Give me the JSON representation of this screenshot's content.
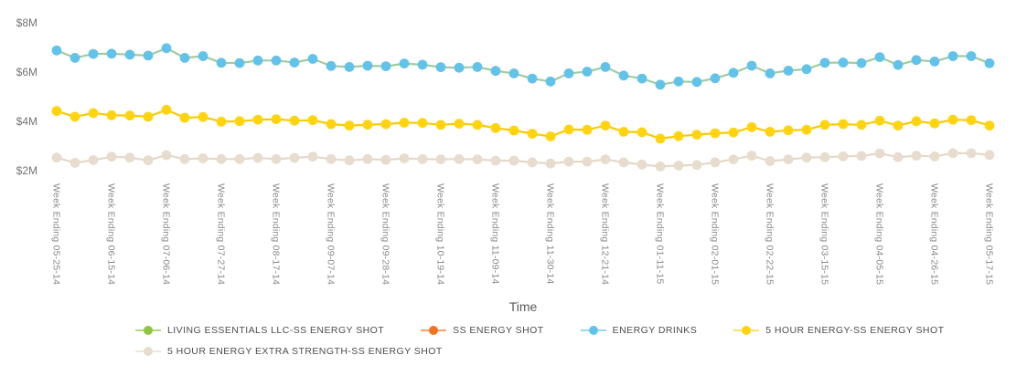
{
  "chart_data": {
    "type": "line",
    "title": "",
    "xlabel": "Time",
    "ylabel": "",
    "grid": false,
    "legend_position": "bottom",
    "ylim": [
      1.6,
      8.4
    ],
    "y_unit": "USD millions",
    "y_ticks": [
      "$8M",
      "$6M",
      "$4M",
      "$2M"
    ],
    "y_tick_values": [
      8,
      6,
      4,
      2
    ],
    "n_points": 52,
    "x_tick_every_n_points": 3,
    "x_tick_labels": [
      "Week Ending 05-25-14",
      "Week Ending 06-15-14",
      "Week Ending 07-06-14",
      "Week Ending 07-27-14",
      "Week Ending 08-17-14",
      "Week Ending 09-07-14",
      "Week Ending 09-28-14",
      "Week Ending 10-19-14",
      "Week Ending 11-09-14",
      "Week Ending 11-30-14",
      "Week Ending 12-21-14",
      "Week Ending 01-11-15",
      "Week Ending 02-01-15",
      "Week Ending 02-22-15",
      "Week Ending 03-15-15",
      "Week Ending 04-05-15",
      "Week Ending 04-26-15",
      "Week Ending 05-17-15"
    ],
    "series": [
      {
        "name": "LIVING ESSENTIALS LLC-SS ENERGY SHOT",
        "marker_color": "#8dc63f",
        "line_color": "#8dc63f",
        "hidden_behind": "ENERGY DRINKS",
        "values": [
          6.86,
          6.56,
          6.72,
          6.73,
          6.69,
          6.65,
          6.95,
          6.56,
          6.63,
          6.36,
          6.35,
          6.45,
          6.45,
          6.37,
          6.52,
          6.23,
          6.19,
          6.24,
          6.22,
          6.33,
          6.28,
          6.18,
          6.16,
          6.19,
          6.03,
          5.93,
          5.72,
          5.6,
          5.93,
          6.0,
          6.19,
          5.84,
          5.72,
          5.47,
          5.6,
          5.58,
          5.73,
          5.95,
          6.24,
          5.93,
          6.04,
          6.1,
          6.36,
          6.37,
          6.35,
          6.59,
          6.27,
          6.47,
          6.41,
          6.63,
          6.63,
          6.34
        ]
      },
      {
        "name": "SS ENERGY SHOT",
        "marker_color": "#f4711f",
        "line_color": "#f4711f",
        "hidden_behind": "5 HOUR ENERGY-SS ENERGY SHOT",
        "values": [
          4.4,
          4.17,
          4.32,
          4.23,
          4.22,
          4.17,
          4.45,
          4.13,
          4.16,
          3.97,
          3.99,
          4.05,
          4.07,
          4.01,
          4.03,
          3.87,
          3.81,
          3.85,
          3.87,
          3.93,
          3.92,
          3.84,
          3.89,
          3.84,
          3.71,
          3.61,
          3.48,
          3.37,
          3.65,
          3.64,
          3.81,
          3.56,
          3.54,
          3.28,
          3.38,
          3.44,
          3.5,
          3.53,
          3.75,
          3.56,
          3.62,
          3.64,
          3.84,
          3.87,
          3.84,
          4.01,
          3.81,
          3.99,
          3.9,
          4.05,
          4.03,
          3.81
        ]
      },
      {
        "name": "ENERGY DRINKS",
        "marker_color": "#62c3ea",
        "line_color": "#a3ca9d",
        "values": [
          6.86,
          6.56,
          6.72,
          6.73,
          6.69,
          6.65,
          6.95,
          6.56,
          6.63,
          6.36,
          6.35,
          6.45,
          6.45,
          6.37,
          6.52,
          6.23,
          6.19,
          6.24,
          6.22,
          6.33,
          6.28,
          6.18,
          6.16,
          6.19,
          6.03,
          5.93,
          5.72,
          5.6,
          5.93,
          6.0,
          6.19,
          5.84,
          5.72,
          5.47,
          5.6,
          5.58,
          5.73,
          5.95,
          6.24,
          5.93,
          6.04,
          6.1,
          6.36,
          6.37,
          6.35,
          6.59,
          6.27,
          6.47,
          6.41,
          6.63,
          6.63,
          6.34
        ]
      },
      {
        "name": "5 HOUR ENERGY-SS ENERGY SHOT",
        "marker_color": "#ffd40e",
        "line_color": "#f7ca05",
        "values": [
          4.4,
          4.17,
          4.32,
          4.23,
          4.22,
          4.17,
          4.45,
          4.13,
          4.16,
          3.97,
          3.99,
          4.05,
          4.07,
          4.01,
          4.03,
          3.87,
          3.81,
          3.85,
          3.87,
          3.93,
          3.92,
          3.84,
          3.89,
          3.84,
          3.71,
          3.61,
          3.48,
          3.37,
          3.65,
          3.64,
          3.81,
          3.56,
          3.54,
          3.28,
          3.38,
          3.44,
          3.5,
          3.53,
          3.75,
          3.56,
          3.62,
          3.64,
          3.84,
          3.87,
          3.84,
          4.01,
          3.81,
          3.99,
          3.9,
          4.05,
          4.03,
          3.81
        ]
      },
      {
        "name": "5 HOUR ENERGY EXTRA STRENGTH-SS ENERGY SHOT",
        "marker_color": "#e7dccd",
        "line_color": "#e4d8c8",
        "values": [
          2.51,
          2.3,
          2.41,
          2.55,
          2.51,
          2.4,
          2.61,
          2.45,
          2.48,
          2.45,
          2.45,
          2.5,
          2.45,
          2.5,
          2.55,
          2.45,
          2.4,
          2.45,
          2.42,
          2.48,
          2.45,
          2.44,
          2.45,
          2.44,
          2.39,
          2.39,
          2.32,
          2.27,
          2.35,
          2.35,
          2.44,
          2.32,
          2.23,
          2.15,
          2.19,
          2.21,
          2.32,
          2.44,
          2.59,
          2.37,
          2.44,
          2.51,
          2.53,
          2.56,
          2.58,
          2.68,
          2.53,
          2.59,
          2.56,
          2.69,
          2.69,
          2.62
        ]
      }
    ]
  },
  "axis_style": {
    "y_tick_color": "#747474",
    "x_tick_color": "#8a8a8a",
    "x_title_color": "#5a5a5a"
  },
  "legend": {
    "items": [
      {
        "label": "LIVING ESSENTIALS LLC-SS ENERGY SHOT",
        "color": "#8dc63f"
      },
      {
        "label": "SS ENERGY SHOT",
        "color": "#f4711f"
      },
      {
        "label": "ENERGY DRINKS",
        "color": "#62c3ea"
      },
      {
        "label": "5 HOUR ENERGY-SS ENERGY SHOT",
        "color": "#ffd40e"
      },
      {
        "label": "5 HOUR ENERGY EXTRA STRENGTH-SS ENERGY SHOT",
        "color": "#e7dccd"
      }
    ]
  }
}
